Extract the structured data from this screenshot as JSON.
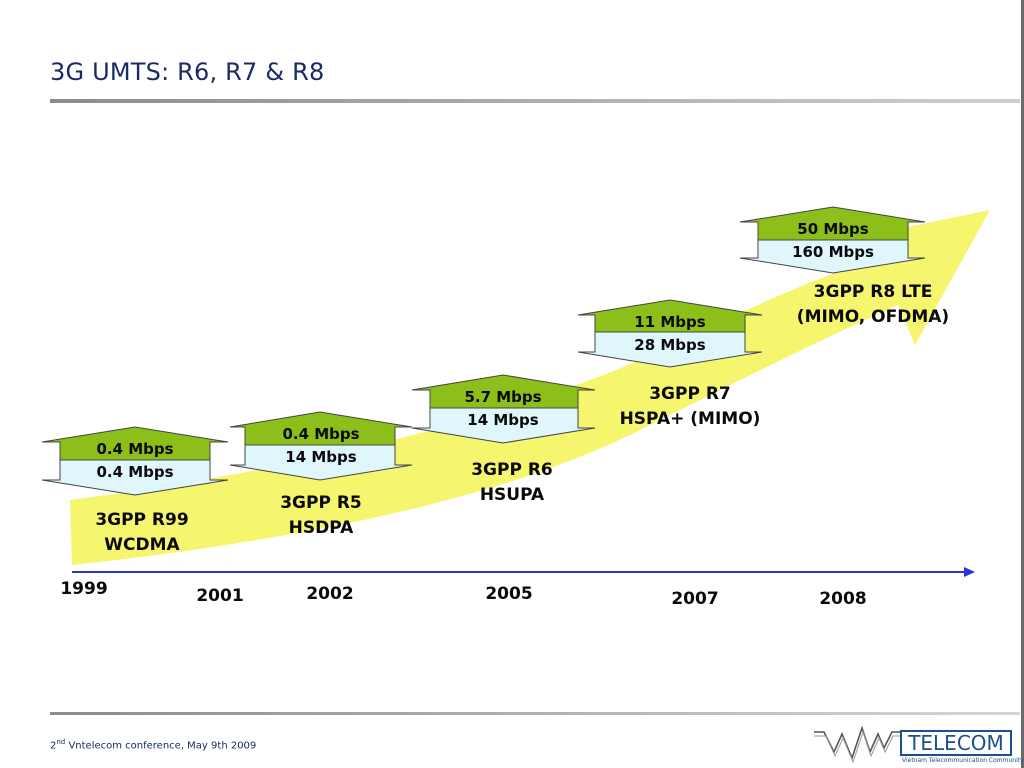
{
  "slide": {
    "title": "3G UMTS: R6, R7 & R8",
    "footer_sup": "nd",
    "footer_num": "2",
    "footer_text": " Vntelecom conference, May 9th 2009"
  },
  "logo": {
    "name": "TELECOM",
    "tagline": "Vietnam Telecommunication Community"
  },
  "colors": {
    "band": "#f5f56e",
    "uplink": "#8cbf1a",
    "downlink": "#dff7fb",
    "timeline": "#2a33d6",
    "text": "#0a0a0a"
  },
  "releases": [
    {
      "uplink": "0.4 Mbps",
      "downlink": "0.4 Mbps",
      "name_line1": "3GPP R99",
      "name_line2": "WCDMA"
    },
    {
      "uplink": "0.4 Mbps",
      "downlink": "14 Mbps",
      "name_line1": "3GPP R5",
      "name_line2": "HSDPA"
    },
    {
      "uplink": "5.7 Mbps",
      "downlink": "14 Mbps",
      "name_line1": "3GPP R6",
      "name_line2": "HSUPA"
    },
    {
      "uplink": "11 Mbps",
      "downlink": "28 Mbps",
      "name_line1": "3GPP R7",
      "name_line2": "HSPA+ (MIMO)"
    },
    {
      "uplink": "50 Mbps",
      "downlink": "160 Mbps",
      "name_line1": "3GPP R8 LTE",
      "name_line2": "(MIMO, OFDMA)"
    }
  ],
  "years": [
    "1999",
    "2001",
    "2002",
    "2005",
    "2007",
    "2008"
  ]
}
